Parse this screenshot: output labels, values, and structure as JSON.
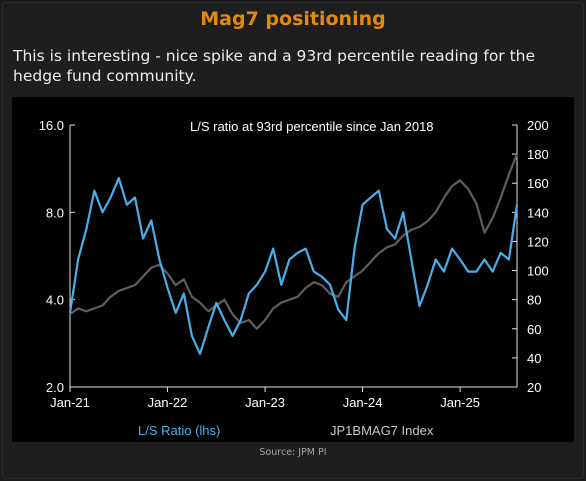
{
  "header": {
    "title": "Mag7 positioning",
    "subtitle": "This is interesting - nice spike and a 93rd percentile reading for the hedge fund community."
  },
  "source": "Source: JPM PI",
  "colors": {
    "title": "#e08a12",
    "ls_series": "#4aaeea",
    "index_series": "#5e5e5e",
    "panel_bg": "#000000"
  },
  "chart_data": {
    "type": "line",
    "annotation": "L/S ratio at 93rd percentile since Jan 2018",
    "x_ticks": [
      "Jan-21",
      "Jan-22",
      "Jan-23",
      "Jan-24",
      "Jan-25"
    ],
    "xlim": [
      "2021-01",
      "2025-08"
    ],
    "left_axis": {
      "scale": "log",
      "ticks": [
        "2.0",
        "4.0",
        "8.0",
        "16.0"
      ],
      "ylim": [
        2,
        16
      ]
    },
    "right_axis": {
      "scale": "linear",
      "ticks": [
        "20",
        "40",
        "60",
        "80",
        "100",
        "120",
        "140",
        "160",
        "180",
        "200"
      ],
      "ylim": [
        20,
        200
      ]
    },
    "legend_position": "bottom",
    "grid": false,
    "series": [
      {
        "name": "L/S Ratio (lhs)",
        "axis": "left",
        "x": [
          "2021-01",
          "2021-02",
          "2021-03",
          "2021-04",
          "2021-05",
          "2021-06",
          "2021-07",
          "2021-08",
          "2021-09",
          "2021-10",
          "2021-11",
          "2021-12",
          "2022-01",
          "2022-02",
          "2022-03",
          "2022-04",
          "2022-05",
          "2022-06",
          "2022-07",
          "2022-08",
          "2022-09",
          "2022-10",
          "2022-11",
          "2022-12",
          "2023-01",
          "2023-02",
          "2023-03",
          "2023-04",
          "2023-05",
          "2023-06",
          "2023-07",
          "2023-08",
          "2023-09",
          "2023-10",
          "2023-11",
          "2023-12",
          "2024-01",
          "2024-02",
          "2024-03",
          "2024-04",
          "2024-05",
          "2024-06",
          "2024-07",
          "2024-08",
          "2024-09",
          "2024-10",
          "2024-11",
          "2024-12",
          "2025-01",
          "2025-02",
          "2025-03",
          "2025-04",
          "2025-05",
          "2025-06",
          "2025-07",
          "2025-08"
        ],
        "values": [
          3.6,
          5.5,
          7.0,
          9.5,
          8.0,
          9.0,
          10.5,
          8.5,
          9.0,
          6.5,
          7.5,
          5.5,
          4.4,
          3.6,
          4.2,
          3.0,
          2.6,
          3.2,
          3.9,
          3.4,
          3.0,
          3.4,
          4.2,
          4.5,
          5.0,
          6.0,
          4.5,
          5.5,
          5.8,
          6.0,
          5.0,
          4.8,
          4.5,
          3.7,
          3.4,
          6.0,
          8.5,
          9.0,
          9.5,
          7.0,
          6.5,
          8.0,
          5.5,
          3.8,
          4.5,
          5.5,
          5.0,
          6.0,
          5.5,
          5.0,
          5.0,
          5.5,
          5.0,
          5.8,
          5.5,
          8.5
        ]
      },
      {
        "name": "JP1BMAG7 Index",
        "axis": "right",
        "x": [
          "2021-01",
          "2021-02",
          "2021-03",
          "2021-04",
          "2021-05",
          "2021-06",
          "2021-07",
          "2021-08",
          "2021-09",
          "2021-10",
          "2021-11",
          "2021-12",
          "2022-01",
          "2022-02",
          "2022-03",
          "2022-04",
          "2022-05",
          "2022-06",
          "2022-07",
          "2022-08",
          "2022-09",
          "2022-10",
          "2022-11",
          "2022-12",
          "2023-01",
          "2023-02",
          "2023-03",
          "2023-04",
          "2023-05",
          "2023-06",
          "2023-07",
          "2023-08",
          "2023-09",
          "2023-10",
          "2023-11",
          "2023-12",
          "2024-01",
          "2024-02",
          "2024-03",
          "2024-04",
          "2024-05",
          "2024-06",
          "2024-07",
          "2024-08",
          "2024-09",
          "2024-10",
          "2024-11",
          "2024-12",
          "2025-01",
          "2025-02",
          "2025-03",
          "2025-04",
          "2025-05",
          "2025-06",
          "2025-07",
          "2025-08"
        ],
        "values": [
          70,
          74,
          72,
          74,
          76,
          82,
          86,
          88,
          90,
          96,
          102,
          104,
          98,
          90,
          94,
          82,
          78,
          72,
          76,
          80,
          70,
          64,
          66,
          60,
          66,
          74,
          78,
          80,
          82,
          88,
          92,
          90,
          84,
          82,
          92,
          96,
          100,
          106,
          112,
          116,
          118,
          124,
          128,
          130,
          134,
          140,
          150,
          158,
          162,
          156,
          146,
          126,
          136,
          150,
          166,
          180
        ]
      }
    ]
  }
}
